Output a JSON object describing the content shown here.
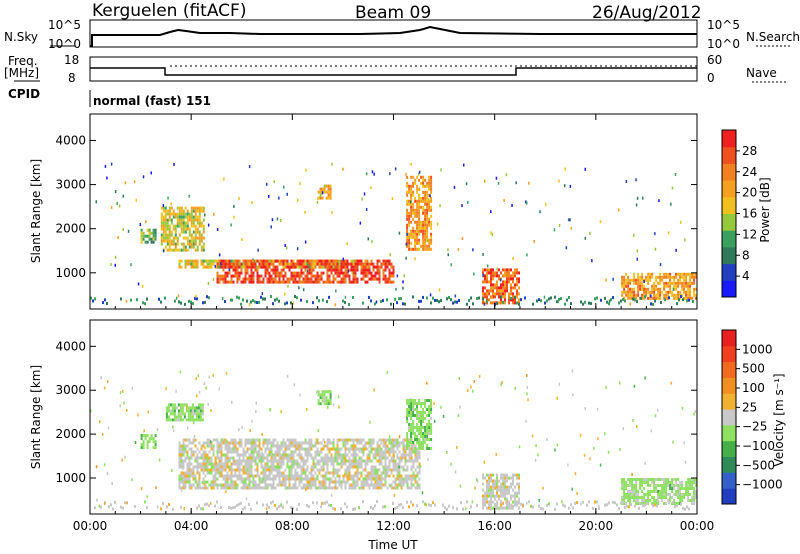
{
  "header": {
    "station": "Kerguelen (fitACF)",
    "beam": "Beam 09",
    "date": "26/Aug/2012"
  },
  "top_panels": {
    "nsky_label": "N.Sky",
    "nsky_ticks": [
      "10^5",
      "10^0"
    ],
    "nsearch_label": "N.Search",
    "nsearch_ticks": [
      "10^5",
      "10^0"
    ],
    "freq_label": "Freq.",
    "freq_unit": "[MHz]",
    "freq_ticks": [
      "18",
      "8"
    ],
    "nave_label": "Nave",
    "nave_ticks": [
      "60",
      "0"
    ],
    "cpid_label": "CPID",
    "cpid_value": "normal (fast) 151"
  },
  "axes": {
    "ylabel": "Slant Range [km]",
    "xlabel": "Time UT",
    "x_ticks": [
      "00:00",
      "04:00",
      "08:00",
      "12:00",
      "16:00",
      "20:00",
      "00:00"
    ],
    "y_ticks": [
      "1000",
      "2000",
      "3000",
      "4000"
    ]
  },
  "colorbars": {
    "power": {
      "label": "Power [dB]",
      "ticks": [
        "28",
        "24",
        "20",
        "16",
        "12",
        "8",
        "4"
      ],
      "colors": [
        "#1a1aff",
        "#2040c0",
        "#2f7a5a",
        "#3aa060",
        "#96c83c",
        "#f0c020",
        "#f5a020",
        "#f08020",
        "#f05020",
        "#f02020"
      ]
    },
    "velocity": {
      "label": "Velocity [m s⁻¹]",
      "ticks": [
        "1000",
        "500",
        "100",
        "25",
        "−25",
        "−100",
        "−500",
        "−1000"
      ],
      "colors": [
        "#1f3fbf",
        "#3460c8",
        "#2f8a5a",
        "#45b04a",
        "#8ee060",
        "#c8c8c8",
        "#f0b030",
        "#f09020",
        "#f06a20",
        "#f04020",
        "#e82020"
      ]
    }
  },
  "chart_data": [
    {
      "type": "heatmap",
      "title": "",
      "quantity": "Power",
      "unit": "dB",
      "xlabel": "Time UT",
      "ylabel": "Slant Range [km]",
      "xlim_hours": [
        0,
        24
      ],
      "ylim_km": [
        180,
        4600
      ],
      "clim": [
        0,
        30
      ],
      "regions": [
        {
          "t_start": 2.0,
          "t_end": 2.6,
          "r_start": 1700,
          "r_end": 2000,
          "value": 12
        },
        {
          "t_start": 2.8,
          "t_end": 4.5,
          "r_start": 1500,
          "r_end": 2500,
          "value": 16
        },
        {
          "t_start": 3.5,
          "t_end": 11.0,
          "r_start": 1100,
          "r_end": 1300,
          "value": 16
        },
        {
          "t_start": 5.0,
          "t_end": 12.0,
          "r_start": 800,
          "r_end": 1300,
          "value": 26
        },
        {
          "t_start": 9.0,
          "t_end": 9.5,
          "r_start": 2700,
          "r_end": 3000,
          "value": 18
        },
        {
          "t_start": 12.5,
          "t_end": 13.5,
          "r_start": 1500,
          "r_end": 3200,
          "value": 20
        },
        {
          "t_start": 15.5,
          "t_end": 17.0,
          "r_start": 300,
          "r_end": 1100,
          "value": 24
        },
        {
          "t_start": 21.0,
          "t_end": 24.0,
          "r_start": 400,
          "r_end": 1000,
          "value": 20
        }
      ]
    },
    {
      "type": "heatmap",
      "title": "",
      "quantity": "Velocity",
      "unit": "m s-1",
      "xlabel": "Time UT",
      "ylabel": "Slant Range [km]",
      "xlim_hours": [
        0,
        24
      ],
      "ylim_km": [
        180,
        4600
      ],
      "clim": [
        -1000,
        1000
      ],
      "regions": [
        {
          "t_start": 2.0,
          "t_end": 2.6,
          "r_start": 1700,
          "r_end": 2000,
          "value": -200
        },
        {
          "t_start": 3.0,
          "t_end": 4.5,
          "r_start": 2300,
          "r_end": 2700,
          "value": -200
        },
        {
          "t_start": 3.5,
          "t_end": 13.0,
          "r_start": 800,
          "r_end": 1900,
          "value": 0
        },
        {
          "t_start": 9.0,
          "t_end": 9.5,
          "r_start": 2700,
          "r_end": 3000,
          "value": -200
        },
        {
          "t_start": 12.5,
          "t_end": 13.5,
          "r_start": 1700,
          "r_end": 2800,
          "value": -200
        },
        {
          "t_start": 15.5,
          "t_end": 17.0,
          "r_start": 300,
          "r_end": 1100,
          "value": 0
        },
        {
          "t_start": 21.0,
          "t_end": 24.0,
          "r_start": 400,
          "r_end": 1000,
          "value": -150
        }
      ]
    }
  ]
}
